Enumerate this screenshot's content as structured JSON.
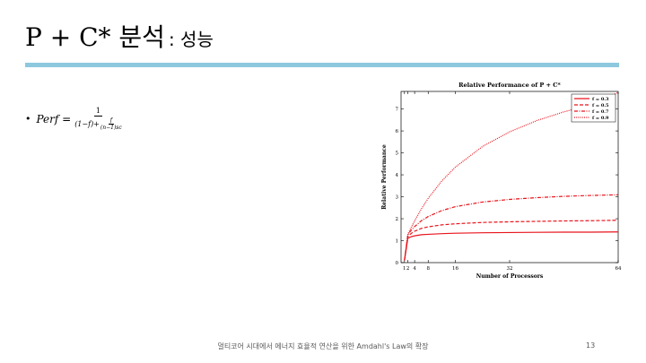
{
  "slide": {
    "title": "P + C* 분석",
    "subtitle": ": 성능",
    "bullet": "•",
    "formula": {
      "lhs": "Perf =",
      "numerator": "1",
      "denominator_left": "(1−f)+",
      "inner_num": "f",
      "inner_den": "(n−1)sc"
    },
    "footer": "멀티코어 시대에서 에너지 효율적 연산을 위한 Amdahl's Law의 확장",
    "page_number": "13"
  },
  "colors": {
    "accent_rule": "#8dc8de",
    "series": "#e8141c"
  },
  "chart_data": {
    "type": "line",
    "title": "Relative Performance of P + C*",
    "xlabel": "Number of Processors",
    "ylabel": "Relative Performance",
    "xticks": [
      1,
      2,
      4,
      8,
      16,
      32,
      64
    ],
    "yticks": [
      0,
      1,
      2,
      3,
      4,
      5,
      6,
      7
    ],
    "xlim": [
      0,
      64
    ],
    "ylim": [
      0,
      7.8
    ],
    "legend_position": "top-right",
    "x": [
      1,
      2,
      3,
      4,
      6,
      8,
      12,
      16,
      24,
      32,
      40,
      48,
      56,
      64
    ],
    "series": [
      {
        "name": "f = 0.3",
        "dash": "solid",
        "values": [
          0.1,
          1.11,
          1.18,
          1.22,
          1.27,
          1.29,
          1.32,
          1.34,
          1.36,
          1.37,
          1.38,
          1.39,
          1.39,
          1.4
        ]
      },
      {
        "name": "f = 0.5",
        "dash": "dashed",
        "values": [
          0.1,
          1.19,
          1.33,
          1.43,
          1.56,
          1.63,
          1.72,
          1.77,
          1.83,
          1.86,
          1.88,
          1.9,
          1.91,
          1.93
        ]
      },
      {
        "name": "f = 0.7",
        "dash": "dashdot",
        "values": [
          0.1,
          1.26,
          1.48,
          1.64,
          1.91,
          2.1,
          2.37,
          2.55,
          2.76,
          2.88,
          2.96,
          3.02,
          3.06,
          3.09
        ]
      },
      {
        "name": "f = 0.9",
        "dash": "dotted",
        "values": [
          0.1,
          1.3,
          1.6,
          1.9,
          2.45,
          2.93,
          3.72,
          4.35,
          5.29,
          5.96,
          6.47,
          6.87,
          7.19,
          7.75
        ]
      }
    ]
  }
}
